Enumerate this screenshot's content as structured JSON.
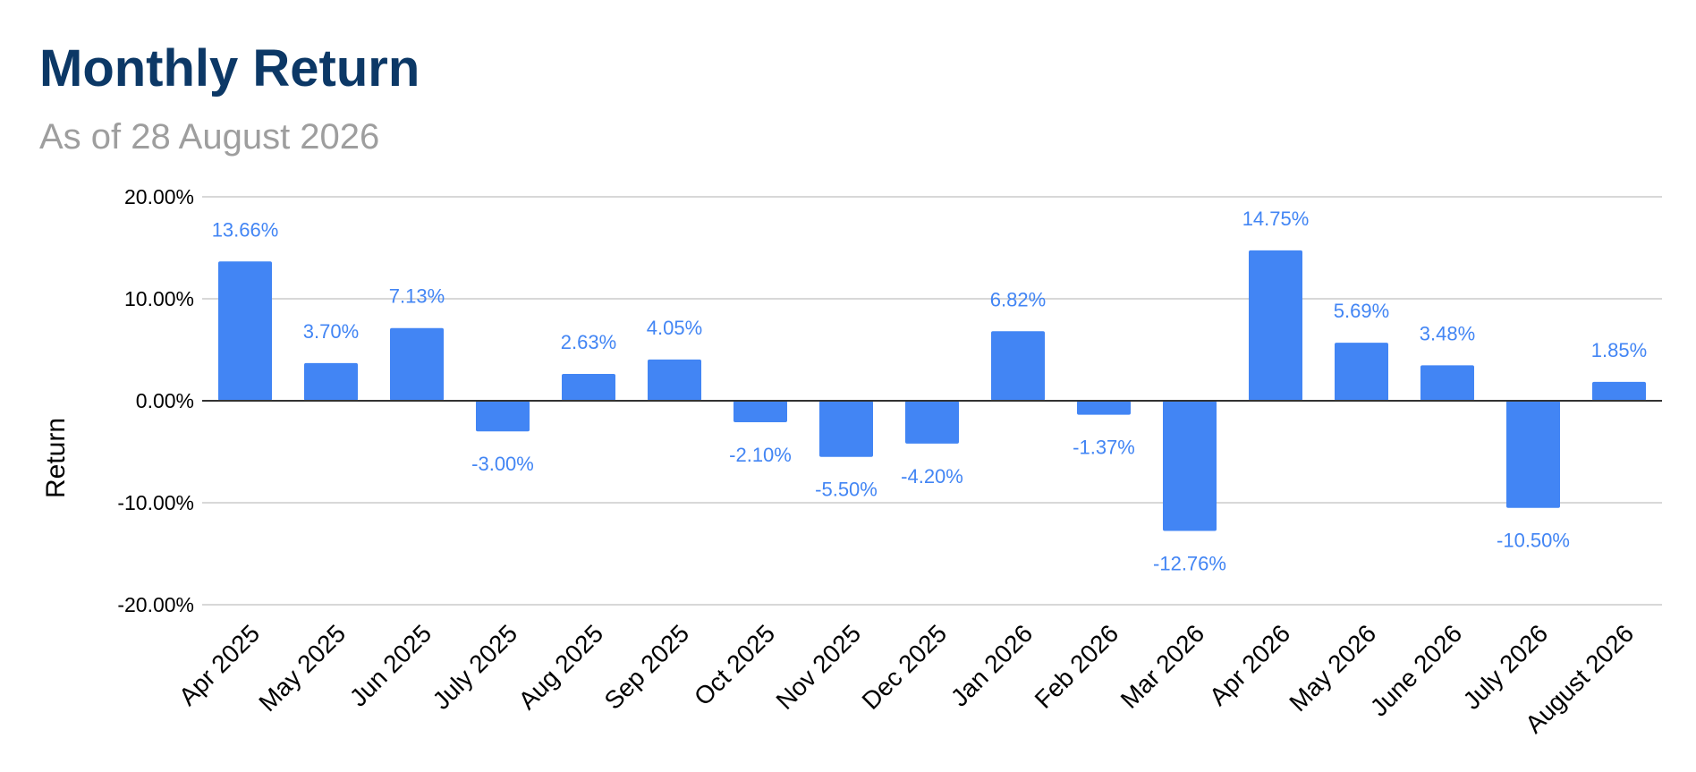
{
  "chart_data": {
    "type": "bar",
    "title": "Monthly Return",
    "subtitle": "As of 28 August 2026",
    "xlabel": "",
    "ylabel": "Return",
    "categories": [
      "Apr 2025",
      "May 2025",
      "Jun 2025",
      "July 2025",
      "Aug 2025",
      "Sep 2025",
      "Oct 2025",
      "Nov 2025",
      "Dec 2025",
      "Jan 2026",
      "Feb 2026",
      "Mar 2026",
      "Apr 2026",
      "May 2026",
      "June 2026",
      "July 2026",
      "August 2026"
    ],
    "series": [
      {
        "values": [
          13.66,
          3.7,
          7.13,
          -3.0,
          2.63,
          4.05,
          -2.1,
          -5.5,
          -4.2,
          6.82,
          -1.37,
          -12.76,
          14.75,
          5.69,
          3.48,
          -10.5,
          1.85
        ],
        "data_labels": [
          "13.66%",
          "3.70%",
          "7.13%",
          "-3.00%",
          "2.63%",
          "4.05%",
          "-2.10%",
          "-5.50%",
          "-4.20%",
          "6.82%",
          "-1.37%",
          "-12.76%",
          "14.75%",
          "5.69%",
          "3.48%",
          "-10.50%",
          "1.85%"
        ]
      }
    ],
    "ylim": [
      -20,
      20
    ],
    "yticks": [
      20,
      10,
      0,
      -10,
      -20
    ],
    "ytick_labels": [
      "20.00%",
      "10.00%",
      "0.00%",
      "-10.00%",
      "-20.00%"
    ],
    "grid": true,
    "legend": "none",
    "colors": {
      "bar": "#4285f4",
      "data_label": "#4285f4",
      "title": "#0c3866",
      "subtitle": "#9e9e9e",
      "gridline": "#cccccc",
      "zero_line": "#333333"
    }
  }
}
